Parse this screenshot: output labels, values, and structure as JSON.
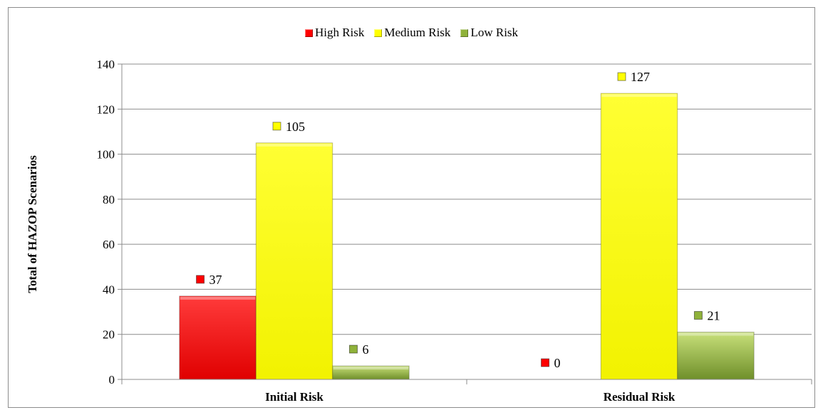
{
  "chart_data": {
    "type": "bar",
    "categories": [
      "Initial Risk",
      "Residual Risk"
    ],
    "series": [
      {
        "name": "High Risk",
        "values": [
          37,
          0
        ],
        "color": "#ff0000"
      },
      {
        "name": "Medium Risk",
        "values": [
          105,
          127
        ],
        "color": "#ffff00"
      },
      {
        "name": "Low Risk",
        "values": [
          6,
          21
        ],
        "color": "#8fb23a"
      }
    ],
    "title": "",
    "xlabel": "",
    "ylabel": "Total of HAZOP Scenarios",
    "ylim": [
      0,
      140
    ],
    "yticks": [
      0,
      20,
      40,
      60,
      80,
      100,
      120,
      140
    ],
    "grid": true,
    "legend_position": "top-center"
  }
}
